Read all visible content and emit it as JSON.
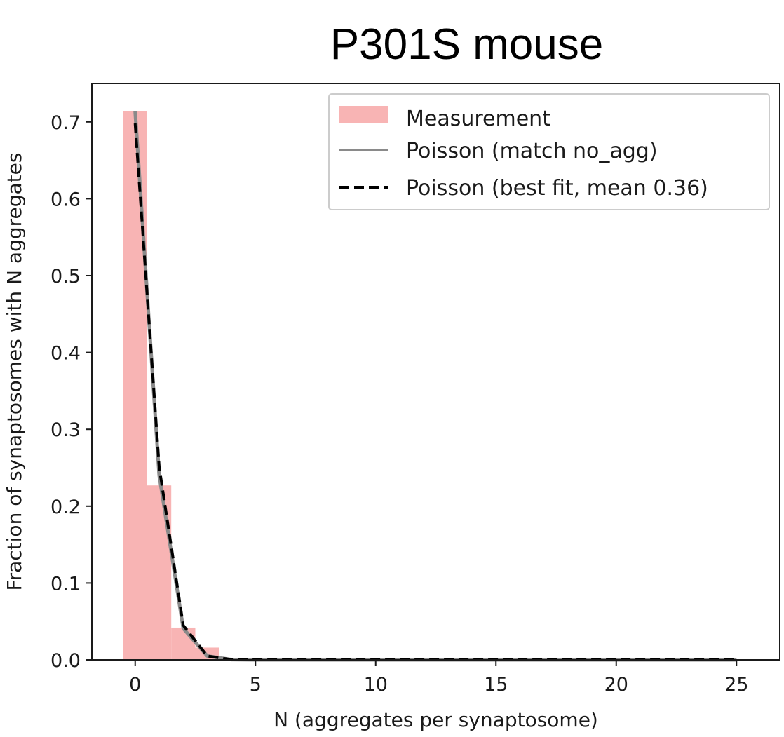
{
  "chart_data": {
    "type": "bar",
    "title": "P301S mouse",
    "xlabel": "N (aggregates per synaptosome)",
    "ylabel": "Fraction of synaptosomes with N aggregates",
    "xlim": [
      -1.8,
      26.8
    ],
    "ylim": [
      0,
      0.75
    ],
    "xticks": [
      0,
      5,
      10,
      15,
      20,
      25
    ],
    "yticks": [
      0.0,
      0.1,
      0.2,
      0.3,
      0.4,
      0.5,
      0.6,
      0.7
    ],
    "xtick_labels": [
      "0",
      "5",
      "10",
      "15",
      "20",
      "25"
    ],
    "ytick_labels": [
      "0.0",
      "0.1",
      "0.2",
      "0.3",
      "0.4",
      "0.5",
      "0.6",
      "0.7"
    ],
    "grid": false,
    "legend_position": "top-right",
    "colors": {
      "measurement": "#f8b4b4",
      "poisson_match": "#8a8a8a",
      "poisson_best": "#000000"
    },
    "series": [
      {
        "name": "Measurement",
        "kind": "histogram",
        "bin_width": 1,
        "x": [
          0,
          1,
          2,
          3
        ],
        "values": [
          0.714,
          0.227,
          0.042,
          0.016
        ]
      },
      {
        "name": "Poisson (match no_agg)",
        "kind": "line",
        "style": "solid",
        "x": [
          0,
          1,
          2,
          3,
          4,
          5,
          6,
          7,
          8,
          9,
          10,
          11,
          12,
          13,
          14,
          15,
          16,
          17,
          18,
          19,
          20,
          21,
          22,
          23,
          24,
          25
        ],
        "values": [
          0.714,
          0.24,
          0.041,
          0.005,
          0.0004,
          0,
          0,
          0,
          0,
          0,
          0,
          0,
          0,
          0,
          0,
          0,
          0,
          0,
          0,
          0,
          0,
          0,
          0,
          0,
          0,
          0
        ]
      },
      {
        "name": "Poisson (best fit, mean 0.36)",
        "kind": "line",
        "style": "dashed",
        "x": [
          0,
          1,
          2,
          3,
          4,
          5,
          6,
          7,
          8,
          9,
          10,
          11,
          12,
          13,
          14,
          15,
          16,
          17,
          18,
          19,
          20,
          21,
          22,
          23,
          24,
          25
        ],
        "values": [
          0.698,
          0.251,
          0.045,
          0.005,
          0.0005,
          0,
          0,
          0,
          0,
          0,
          0,
          0,
          0,
          0,
          0,
          0,
          0,
          0,
          0,
          0,
          0,
          0,
          0,
          0,
          0,
          0
        ]
      }
    ]
  }
}
